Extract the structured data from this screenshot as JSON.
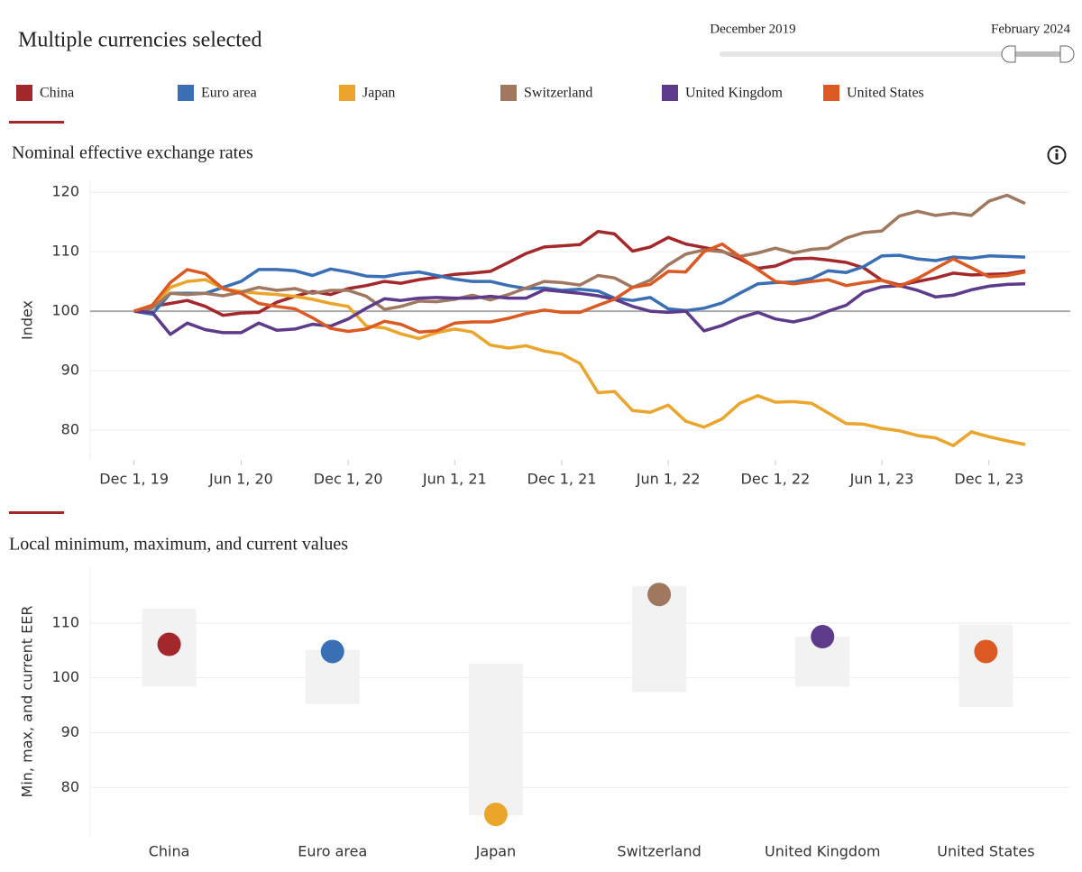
{
  "header": {
    "title": "Multiple currencies selected",
    "slider": {
      "start": "December 2019",
      "end": "February 2024"
    }
  },
  "chart_data": [
    {
      "type": "line",
      "title": "Nominal effective exchange rates",
      "y_label": "Index",
      "x": [
        "2019-12-01",
        "2020-01-01",
        "2020-02-01",
        "2020-03-01",
        "2020-04-01",
        "2020-05-01",
        "2020-06-01",
        "2020-07-01",
        "2020-08-01",
        "2020-09-01",
        "2020-10-01",
        "2020-11-01",
        "2020-12-01",
        "2021-01-01",
        "2021-02-01",
        "2021-03-01",
        "2021-04-01",
        "2021-05-01",
        "2021-06-01",
        "2021-07-01",
        "2021-08-01",
        "2021-09-01",
        "2021-10-01",
        "2021-11-01",
        "2021-12-01",
        "2022-01-01",
        "2022-02-01",
        "2022-03-01",
        "2022-04-01",
        "2022-05-01",
        "2022-06-01",
        "2022-07-01",
        "2022-08-01",
        "2022-09-01",
        "2022-10-01",
        "2022-11-01",
        "2022-12-01",
        "2023-01-01",
        "2023-02-01",
        "2023-03-01",
        "2023-04-01",
        "2023-05-01",
        "2023-06-01",
        "2023-07-01",
        "2023-08-01",
        "2023-09-01",
        "2023-10-01",
        "2023-11-01",
        "2023-12-01",
        "2024-01-01",
        "2024-02-01"
      ],
      "series": [
        {
          "name": "China",
          "color": "#a4282b",
          "values": [
            100,
            100.8,
            101.3,
            101.8,
            100.8,
            99.3,
            99.7,
            99.8,
            101.5,
            102.5,
            103.3,
            102.8,
            103.8,
            104.3,
            105,
            104.7,
            105.3,
            105.7,
            106.2,
            106.4,
            106.7,
            108.2,
            109.7,
            110.8,
            111,
            111.2,
            113.4,
            113,
            110.1,
            110.8,
            112.4,
            111.3,
            110.7,
            110.1,
            108.8,
            107.2,
            107.6,
            108.8,
            108.9,
            108.6,
            108.2,
            107.3,
            105.2,
            104.4,
            105,
            105.6,
            106.4,
            106.1,
            106.2,
            106.3,
            106.8
          ]
        },
        {
          "name": "Euro area",
          "color": "#3a6fb5",
          "values": [
            100,
            99.5,
            103,
            103,
            103,
            104,
            105,
            107,
            107,
            106.8,
            106,
            107.1,
            106.6,
            105.9,
            105.8,
            106.3,
            106.6,
            106,
            105.4,
            105,
            105,
            104.3,
            103.8,
            103.9,
            103.5,
            103.7,
            103.4,
            102.2,
            101.8,
            102.3,
            100.4,
            100.1,
            100.5,
            101.4,
            103,
            104.6,
            104.8,
            104.9,
            105.5,
            106.8,
            106.5,
            107.5,
            109.3,
            109.4,
            108.8,
            108.5,
            109.1,
            108.9,
            109.3,
            109.2,
            109.1
          ]
        },
        {
          "name": "Japan",
          "color": "#eba52a",
          "values": [
            100,
            100.5,
            104,
            105,
            105.3,
            103.8,
            103.3,
            103,
            102.8,
            102.5,
            102,
            101.3,
            100.8,
            97.5,
            97.2,
            96.2,
            95.4,
            96.4,
            97,
            96.5,
            94.3,
            93.8,
            94.2,
            93.3,
            92.8,
            91.2,
            86.3,
            86.5,
            83.3,
            83,
            84.2,
            81.5,
            80.5,
            81.9,
            84.5,
            85.8,
            84.7,
            84.8,
            84.5,
            82.9,
            81.1,
            81,
            80.3,
            79.9,
            79.1,
            78.7,
            77.4,
            79.7,
            78.9,
            78.2,
            77.6
          ]
        },
        {
          "name": "Switzerland",
          "color": "#a07860",
          "values": [
            100,
            100.5,
            103,
            102.8,
            103,
            102.6,
            103.2,
            104,
            103.5,
            103.8,
            103,
            103.5,
            103.5,
            102.5,
            100.3,
            100.8,
            101.7,
            101.6,
            102,
            102.7,
            101.9,
            102.8,
            103.9,
            105,
            104.8,
            104.4,
            106,
            105.6,
            104,
            105.2,
            107.8,
            109.6,
            110.3,
            110,
            109.2,
            109.8,
            110.6,
            109.8,
            110.4,
            110.6,
            112.3,
            113.2,
            113.5,
            116,
            116.8,
            116.1,
            116.5,
            116.1,
            118.5,
            119.5,
            118.1
          ]
        },
        {
          "name": "United Kingdom",
          "color": "#5e3a8a",
          "values": [
            100,
            99.8,
            96.1,
            98,
            96.9,
            96.4,
            96.4,
            98,
            96.8,
            97,
            97.8,
            97.5,
            98.7,
            100.5,
            102.1,
            101.8,
            102.2,
            102.3,
            102.2,
            102.2,
            102.5,
            102.2,
            102.2,
            103.6,
            103.3,
            103,
            102.6,
            102,
            100.8,
            100,
            99.8,
            100,
            96.7,
            97.6,
            98.9,
            99.8,
            98.7,
            98.2,
            98.9,
            100,
            101,
            103.2,
            104.1,
            104.3,
            103.5,
            102.4,
            102.7,
            103.6,
            104.2,
            104.5,
            104.6
          ]
        },
        {
          "name": "United States",
          "color": "#dc5a22",
          "values": [
            100,
            101,
            104.8,
            107,
            106.3,
            103.8,
            103,
            101.3,
            100.8,
            100.4,
            98.9,
            97.1,
            96.6,
            97,
            98.3,
            97.8,
            96.5,
            96.7,
            98,
            98.2,
            98.2,
            98.8,
            99.6,
            100.2,
            99.8,
            99.8,
            101,
            102,
            104,
            104.5,
            106.7,
            106.6,
            110,
            111.3,
            109.2,
            107,
            105,
            104.6,
            105,
            105.3,
            104.3,
            104.8,
            105.2,
            104.2,
            105.5,
            107.2,
            108.8,
            107.3,
            105.8,
            106,
            106.6
          ]
        }
      ],
      "xlim": [
        "2019-09-17",
        "2024-04-18"
      ],
      "xticks": [
        {
          "value": "2019-12-01",
          "label": "Dec 1, 19"
        },
        {
          "value": "2020-06-01",
          "label": "Jun 1, 20"
        },
        {
          "value": "2020-12-01",
          "label": "Dec 1, 20"
        },
        {
          "value": "2021-06-01",
          "label": "Jun 1, 21"
        },
        {
          "value": "2021-12-01",
          "label": "Dec 1, 21"
        },
        {
          "value": "2022-06-01",
          "label": "Jun 1, 22"
        },
        {
          "value": "2022-12-01",
          "label": "Dec 1, 22"
        },
        {
          "value": "2023-06-01",
          "label": "Jun 1, 23"
        },
        {
          "value": "2023-12-01",
          "label": "Dec 1, 23"
        }
      ],
      "ylim": [
        75,
        122
      ],
      "yticks": [
        80,
        90,
        100,
        110,
        120
      ],
      "reference_line": 100,
      "grid": true
    },
    {
      "type": "range",
      "title": "Local minimum, maximum, and current values",
      "y_label": "Min, max, and current EER",
      "categories": [
        "China",
        "Euro area",
        "Japan",
        "Switzerland",
        "United Kingdom",
        "United States"
      ],
      "colors": [
        "#a4282b",
        "#3a6fb5",
        "#eba52a",
        "#a07860",
        "#5e3a8a",
        "#dc5a22"
      ],
      "min": [
        98.4,
        95.2,
        74.9,
        97.4,
        98.4,
        94.7
      ],
      "max": [
        112.6,
        105.1,
        102.6,
        116.7,
        107.5,
        109.7
      ],
      "current": [
        106.1,
        104.8,
        75.1,
        115.2,
        107.5,
        104.8
      ],
      "ylim": [
        71,
        120
      ],
      "yticks": [
        80,
        90,
        100,
        110
      ],
      "grid": true
    }
  ]
}
